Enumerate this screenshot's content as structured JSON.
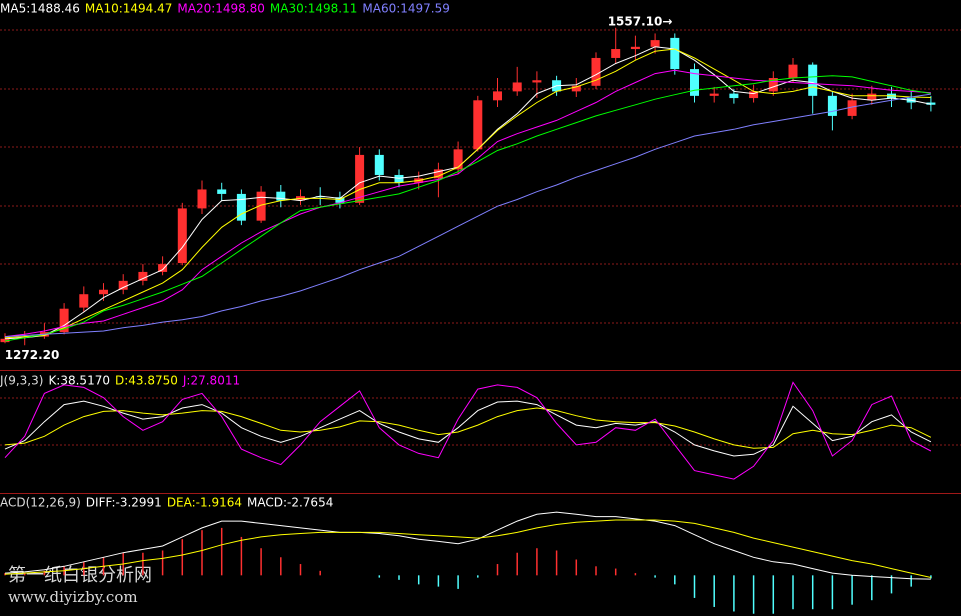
{
  "chart_data": [
    {
      "type": "candlestick",
      "ylim": [
        1250,
        1582
      ],
      "up_color": "#ff3030",
      "down_color": "#50ffff",
      "max_label": "1557.10→",
      "min_label": "1272.20",
      "open": [
        1275,
        1279,
        1280,
        1284,
        1306,
        1318,
        1322,
        1330,
        1338,
        1346,
        1395,
        1412,
        1408,
        1384,
        1410,
        1402,
        1406,
        1405,
        1400,
        1443,
        1425,
        1418,
        1422,
        1430,
        1448,
        1492,
        1500,
        1508,
        1510,
        1500,
        1505,
        1530,
        1538,
        1540,
        1548,
        1520,
        1496,
        1498,
        1494,
        1500,
        1512,
        1524,
        1496,
        1478,
        1492,
        1498,
        1494,
        1490
      ],
      "high": [
        1283,
        1285,
        1292,
        1310,
        1325,
        1328,
        1336,
        1345,
        1352,
        1400,
        1420,
        1418,
        1412,
        1415,
        1416,
        1412,
        1414,
        1410,
        1450,
        1448,
        1430,
        1428,
        1436,
        1455,
        1496,
        1512,
        1522,
        1518,
        1514,
        1512,
        1535,
        1557.1,
        1550,
        1552,
        1552,
        1525,
        1504,
        1502,
        1506,
        1518,
        1530,
        1526,
        1500,
        1498,
        1505,
        1504,
        1500,
        1496
      ],
      "low": [
        1274,
        1272.2,
        1278,
        1282,
        1302,
        1312,
        1318,
        1326,
        1335,
        1344,
        1390,
        1402,
        1380,
        1382,
        1396,
        1398,
        1398,
        1395,
        1398,
        1420,
        1414,
        1412,
        1405,
        1426,
        1446,
        1486,
        1496,
        1494,
        1496,
        1495,
        1502,
        1525,
        1528,
        1534,
        1515,
        1490,
        1490,
        1489,
        1490,
        1496,
        1508,
        1480,
        1465,
        1475,
        1488,
        1486,
        1484,
        1482
      ],
      "close": [
        1278,
        1280,
        1284,
        1305,
        1318,
        1322,
        1330,
        1338,
        1345,
        1395,
        1412,
        1408,
        1384,
        1410,
        1402,
        1406,
        1405,
        1400,
        1443,
        1425,
        1418,
        1422,
        1430,
        1448,
        1492,
        1500,
        1508,
        1510,
        1500,
        1505,
        1530,
        1538,
        1540,
        1546,
        1520,
        1496,
        1498,
        1494,
        1500,
        1512,
        1524,
        1496,
        1478,
        1492,
        1498,
        1494,
        1490,
        1488
      ],
      "series": [
        {
          "name": "MA5:1488.46",
          "color": "#ffffff",
          "values": [
            1278,
            1279,
            1281,
            1290,
            1302,
            1315,
            1324,
            1332,
            1340,
            1360,
            1385,
            1402,
            1403,
            1405,
            1404,
            1402,
            1406,
            1404,
            1418,
            1424,
            1422,
            1424,
            1428,
            1432,
            1448,
            1466,
            1480,
            1498,
            1505,
            1506,
            1515,
            1525,
            1532,
            1540,
            1538,
            1528,
            1515,
            1500,
            1498,
            1504,
            1510,
            1508,
            1500,
            1494,
            1492,
            1494,
            1492,
            1488.46
          ]
        },
        {
          "name": "MA10:1494.47",
          "color": "#ffff00",
          "values": [
            1279,
            1280,
            1281,
            1288,
            1296,
            1304,
            1312,
            1320,
            1328,
            1340,
            1360,
            1378,
            1390,
            1398,
            1402,
            1404,
            1404,
            1403,
            1412,
            1418,
            1418,
            1420,
            1424,
            1432,
            1448,
            1465,
            1478,
            1490,
            1500,
            1504,
            1510,
            1518,
            1528,
            1536,
            1538,
            1530,
            1520,
            1510,
            1500,
            1498,
            1500,
            1504,
            1500,
            1496,
            1496,
            1496,
            1495,
            1494.47
          ]
        },
        {
          "name": "MA20:1498.80",
          "color": "#ff00ff",
          "values": [
            1280,
            1282,
            1285,
            1289,
            1292,
            1294,
            1300,
            1306,
            1312,
            1322,
            1340,
            1352,
            1364,
            1374,
            1382,
            1390,
            1396,
            1400,
            1405,
            1410,
            1415,
            1418,
            1421,
            1426,
            1440,
            1455,
            1462,
            1468,
            1474,
            1482,
            1490,
            1500,
            1508,
            1516,
            1519,
            1516,
            1514,
            1512,
            1510,
            1509,
            1508,
            1507,
            1506,
            1505,
            1503,
            1501,
            1500,
            1498.8
          ]
        },
        {
          "name": "MA30:1498.11",
          "color": "#00ff00",
          "values": [
            1276,
            1279,
            1282,
            1287,
            1293,
            1303,
            1308,
            1314,
            1320,
            1327,
            1334,
            1346,
            1358,
            1370,
            1382,
            1393,
            1396,
            1399,
            1402,
            1405,
            1408,
            1414,
            1420,
            1428,
            1437,
            1447,
            1453,
            1460,
            1466,
            1472,
            1478,
            1483,
            1488,
            1493,
            1497,
            1501,
            1503,
            1505,
            1507,
            1510,
            1512,
            1513,
            1514,
            1513,
            1509,
            1505,
            1501,
            1498.11
          ]
        },
        {
          "name": "MA60:1497.59",
          "color": "#8080ff",
          "values": [
            1280,
            1281,
            1282,
            1283,
            1284,
            1285,
            1288,
            1290,
            1293,
            1295,
            1298,
            1303,
            1307,
            1312,
            1316,
            1321,
            1327,
            1333,
            1340,
            1346,
            1352,
            1361,
            1370,
            1379,
            1388,
            1397,
            1403,
            1410,
            1416,
            1423,
            1429,
            1435,
            1441,
            1448,
            1454,
            1460,
            1463,
            1466,
            1470,
            1473,
            1476,
            1479,
            1482,
            1486,
            1489,
            1492,
            1495,
            1497.59
          ]
        }
      ]
    },
    {
      "type": "line",
      "title": "J(9,3,3)",
      "ylim": [
        -20,
        120
      ],
      "series": [
        {
          "name": "K:38.5170",
          "color": "#ffffff",
          "values": [
            30,
            40,
            62,
            82,
            86,
            80,
            72,
            65,
            68,
            78,
            82,
            72,
            55,
            45,
            38,
            45,
            55,
            65,
            75,
            60,
            50,
            42,
            38,
            55,
            75,
            85,
            86,
            82,
            70,
            58,
            55,
            60,
            58,
            62,
            50,
            35,
            28,
            22,
            24,
            35,
            80,
            60,
            40,
            45,
            62,
            70,
            50,
            38.517
          ]
        },
        {
          "name": "D:43.8750",
          "color": "#ffff00",
          "values": [
            35,
            37,
            45,
            58,
            68,
            74,
            75,
            72,
            70,
            72,
            75,
            74,
            68,
            60,
            52,
            50,
            52,
            56,
            63,
            62,
            58,
            52,
            47,
            50,
            58,
            68,
            75,
            78,
            75,
            69,
            64,
            62,
            61,
            61,
            57,
            50,
            42,
            35,
            31,
            32,
            48,
            52,
            48,
            47,
            52,
            58,
            55,
            43.875
          ]
        },
        {
          "name": "J:27.8011",
          "color": "#ff00ff",
          "values": [
            20,
            45,
            95,
            105,
            102,
            90,
            68,
            52,
            62,
            88,
            95,
            68,
            30,
            20,
            12,
            35,
            62,
            80,
            98,
            55,
            35,
            25,
            20,
            65,
            100,
            105,
            102,
            90,
            60,
            35,
            38,
            55,
            52,
            65,
            35,
            5,
            0,
            -5,
            10,
            40,
            108,
            75,
            22,
            40,
            82,
            92,
            40,
            27.8011
          ]
        }
      ]
    },
    {
      "type": "macd",
      "title": "ACD(12,26,9)",
      "ylim": [
        -36,
        72
      ],
      "up_color": "#ff3030",
      "down_color": "#50ffff",
      "series": [
        {
          "name": "DIFF:-3.2991",
          "color": "#ffffff",
          "values": [
            2,
            3,
            5,
            8,
            12,
            16,
            20,
            23,
            26,
            34,
            42,
            48,
            48,
            46,
            44,
            42,
            40,
            38,
            38,
            37,
            35,
            32,
            30,
            28,
            32,
            40,
            48,
            54,
            56,
            54,
            52,
            52,
            50,
            48,
            44,
            36,
            28,
            22,
            16,
            12,
            10,
            6,
            2,
            0,
            -1,
            -2,
            -3,
            -3.2991
          ]
        },
        {
          "name": "DEA:-1.9164",
          "color": "#ffff00",
          "values": [
            1,
            2,
            3,
            4,
            6,
            8,
            10,
            13,
            15,
            18,
            22,
            27,
            31,
            34,
            36,
            37,
            38,
            38,
            38,
            38,
            37,
            36,
            35,
            34,
            33,
            35,
            38,
            42,
            45,
            47,
            48,
            49,
            49,
            49,
            48,
            46,
            42,
            38,
            33,
            29,
            25,
            21,
            17,
            13,
            10,
            6,
            2,
            -1.9164
          ]
        },
        {
          "name": "MACD:-2.7654",
          "color": "#ffffff",
          "values": [
            2,
            2,
            4,
            8,
            12,
            16,
            20,
            20,
            22,
            32,
            40,
            42,
            34,
            24,
            16,
            10,
            4,
            0,
            0,
            -2,
            -4,
            -8,
            -10,
            -12,
            -2,
            10,
            20,
            24,
            22,
            14,
            8,
            6,
            2,
            -2,
            -8,
            -20,
            -28,
            -32,
            -34,
            -34,
            -30,
            -30,
            -30,
            -26,
            -22,
            -16,
            -10,
            -2.7654
          ]
        }
      ]
    }
  ],
  "watermark": {
    "site_name": "第一纸白银分析网",
    "url": "www.diyizby.com"
  }
}
